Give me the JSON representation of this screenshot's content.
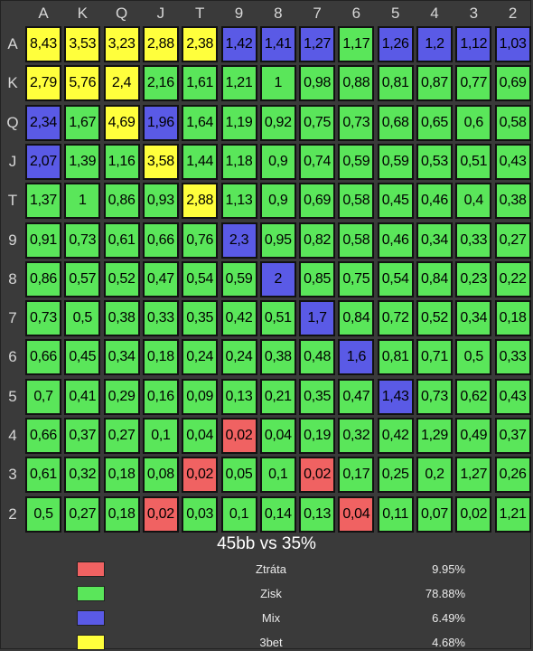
{
  "chart_data": {
    "type": "heatmap",
    "title": "45bb vs 35%",
    "columns": [
      "A",
      "K",
      "Q",
      "J",
      "T",
      "9",
      "8",
      "7",
      "6",
      "5",
      "4",
      "3",
      "2"
    ],
    "rows": [
      "A",
      "K",
      "Q",
      "J",
      "T",
      "9",
      "8",
      "7",
      "6",
      "5",
      "4",
      "3",
      "2"
    ],
    "values": [
      [
        "8,43",
        "3,53",
        "3,23",
        "2,88",
        "2,38",
        "1,42",
        "1,41",
        "1,27",
        "1,17",
        "1,26",
        "1,2",
        "1,12",
        "1,03"
      ],
      [
        "2,79",
        "5,76",
        "2,4",
        "2,16",
        "1,61",
        "1,21",
        "1",
        "0,98",
        "0,88",
        "0,81",
        "0,87",
        "0,77",
        "0,69"
      ],
      [
        "2,34",
        "1,67",
        "4,69",
        "1,96",
        "1,64",
        "1,19",
        "0,92",
        "0,75",
        "0,73",
        "0,68",
        "0,65",
        "0,6",
        "0,58"
      ],
      [
        "2,07",
        "1,39",
        "1,16",
        "3,58",
        "1,44",
        "1,18",
        "0,9",
        "0,74",
        "0,59",
        "0,59",
        "0,53",
        "0,51",
        "0,43"
      ],
      [
        "1,37",
        "1",
        "0,86",
        "0,93",
        "2,88",
        "1,13",
        "0,9",
        "0,69",
        "0,58",
        "0,45",
        "0,46",
        "0,4",
        "0,38"
      ],
      [
        "0,91",
        "0,73",
        "0,61",
        "0,66",
        "0,76",
        "2,3",
        "0,95",
        "0,82",
        "0,58",
        "0,46",
        "0,34",
        "0,33",
        "0,27"
      ],
      [
        "0,86",
        "0,57",
        "0,52",
        "0,47",
        "0,54",
        "0,59",
        "2",
        "0,85",
        "0,75",
        "0,54",
        "0,84",
        "0,23",
        "0,22"
      ],
      [
        "0,73",
        "0,5",
        "0,38",
        "0,33",
        "0,35",
        "0,42",
        "0,51",
        "1,7",
        "0,84",
        "0,72",
        "0,52",
        "0,34",
        "0,18"
      ],
      [
        "0,66",
        "0,45",
        "0,34",
        "0,18",
        "0,24",
        "0,24",
        "0,38",
        "0,48",
        "1,6",
        "0,81",
        "0,71",
        "0,5",
        "0,33"
      ],
      [
        "0,7",
        "0,41",
        "0,29",
        "0,16",
        "0,09",
        "0,13",
        "0,21",
        "0,35",
        "0,47",
        "1,43",
        "0,73",
        "0,62",
        "0,43"
      ],
      [
        "0,66",
        "0,37",
        "0,27",
        "0,1",
        "0,04",
        "0,02",
        "0,04",
        "0,19",
        "0,32",
        "0,42",
        "1,29",
        "0,49",
        "0,37"
      ],
      [
        "0,61",
        "0,32",
        "0,18",
        "0,08",
        "0,02",
        "0,05",
        "0,1",
        "0,02",
        "0,17",
        "0,25",
        "0,2",
        "1,27",
        "0,26"
      ],
      [
        "0,5",
        "0,27",
        "0,18",
        "0,02",
        "0,03",
        "0,1",
        "0,14",
        "0,13",
        "0,04",
        "0,11",
        "0,07",
        "0,02",
        "1,21"
      ]
    ],
    "categories": [
      [
        "Y",
        "Y",
        "Y",
        "Y",
        "Y",
        "M",
        "M",
        "M",
        "G",
        "M",
        "M",
        "M",
        "M"
      ],
      [
        "Y",
        "Y",
        "Y",
        "G",
        "G",
        "G",
        "G",
        "G",
        "G",
        "G",
        "G",
        "G",
        "G"
      ],
      [
        "M",
        "G",
        "Y",
        "M",
        "G",
        "G",
        "G",
        "G",
        "G",
        "G",
        "G",
        "G",
        "G"
      ],
      [
        "M",
        "G",
        "G",
        "Y",
        "G",
        "G",
        "G",
        "G",
        "G",
        "G",
        "G",
        "G",
        "G"
      ],
      [
        "G",
        "G",
        "G",
        "G",
        "Y",
        "G",
        "G",
        "G",
        "G",
        "G",
        "G",
        "G",
        "G"
      ],
      [
        "G",
        "G",
        "G",
        "G",
        "G",
        "M",
        "G",
        "G",
        "G",
        "G",
        "G",
        "G",
        "G"
      ],
      [
        "G",
        "G",
        "G",
        "G",
        "G",
        "G",
        "M",
        "G",
        "G",
        "G",
        "G",
        "G",
        "G"
      ],
      [
        "G",
        "G",
        "G",
        "G",
        "G",
        "G",
        "G",
        "M",
        "G",
        "G",
        "G",
        "G",
        "G"
      ],
      [
        "G",
        "G",
        "G",
        "G",
        "G",
        "G",
        "G",
        "G",
        "M",
        "G",
        "G",
        "G",
        "G"
      ],
      [
        "G",
        "G",
        "G",
        "G",
        "G",
        "G",
        "G",
        "G",
        "G",
        "M",
        "G",
        "G",
        "G"
      ],
      [
        "G",
        "G",
        "G",
        "G",
        "G",
        "R",
        "G",
        "G",
        "G",
        "G",
        "G",
        "G",
        "G"
      ],
      [
        "G",
        "G",
        "G",
        "G",
        "R",
        "G",
        "G",
        "R",
        "G",
        "G",
        "G",
        "G",
        "G"
      ],
      [
        "G",
        "G",
        "G",
        "R",
        "G",
        "G",
        "G",
        "G",
        "R",
        "G",
        "G",
        "G",
        "G"
      ]
    ],
    "colors": {
      "R": "#f06262",
      "G": "#5ae65a",
      "M": "#5a5ae6",
      "Y": "#ffff3c"
    },
    "legend": [
      {
        "key": "R",
        "label": "Ztráta",
        "percent": "9.95%"
      },
      {
        "key": "G",
        "label": "Zisk",
        "percent": "78.88%"
      },
      {
        "key": "M",
        "label": "Mix",
        "percent": "6.49%"
      },
      {
        "key": "Y",
        "label": "3bet",
        "percent": "4.68%"
      }
    ]
  }
}
